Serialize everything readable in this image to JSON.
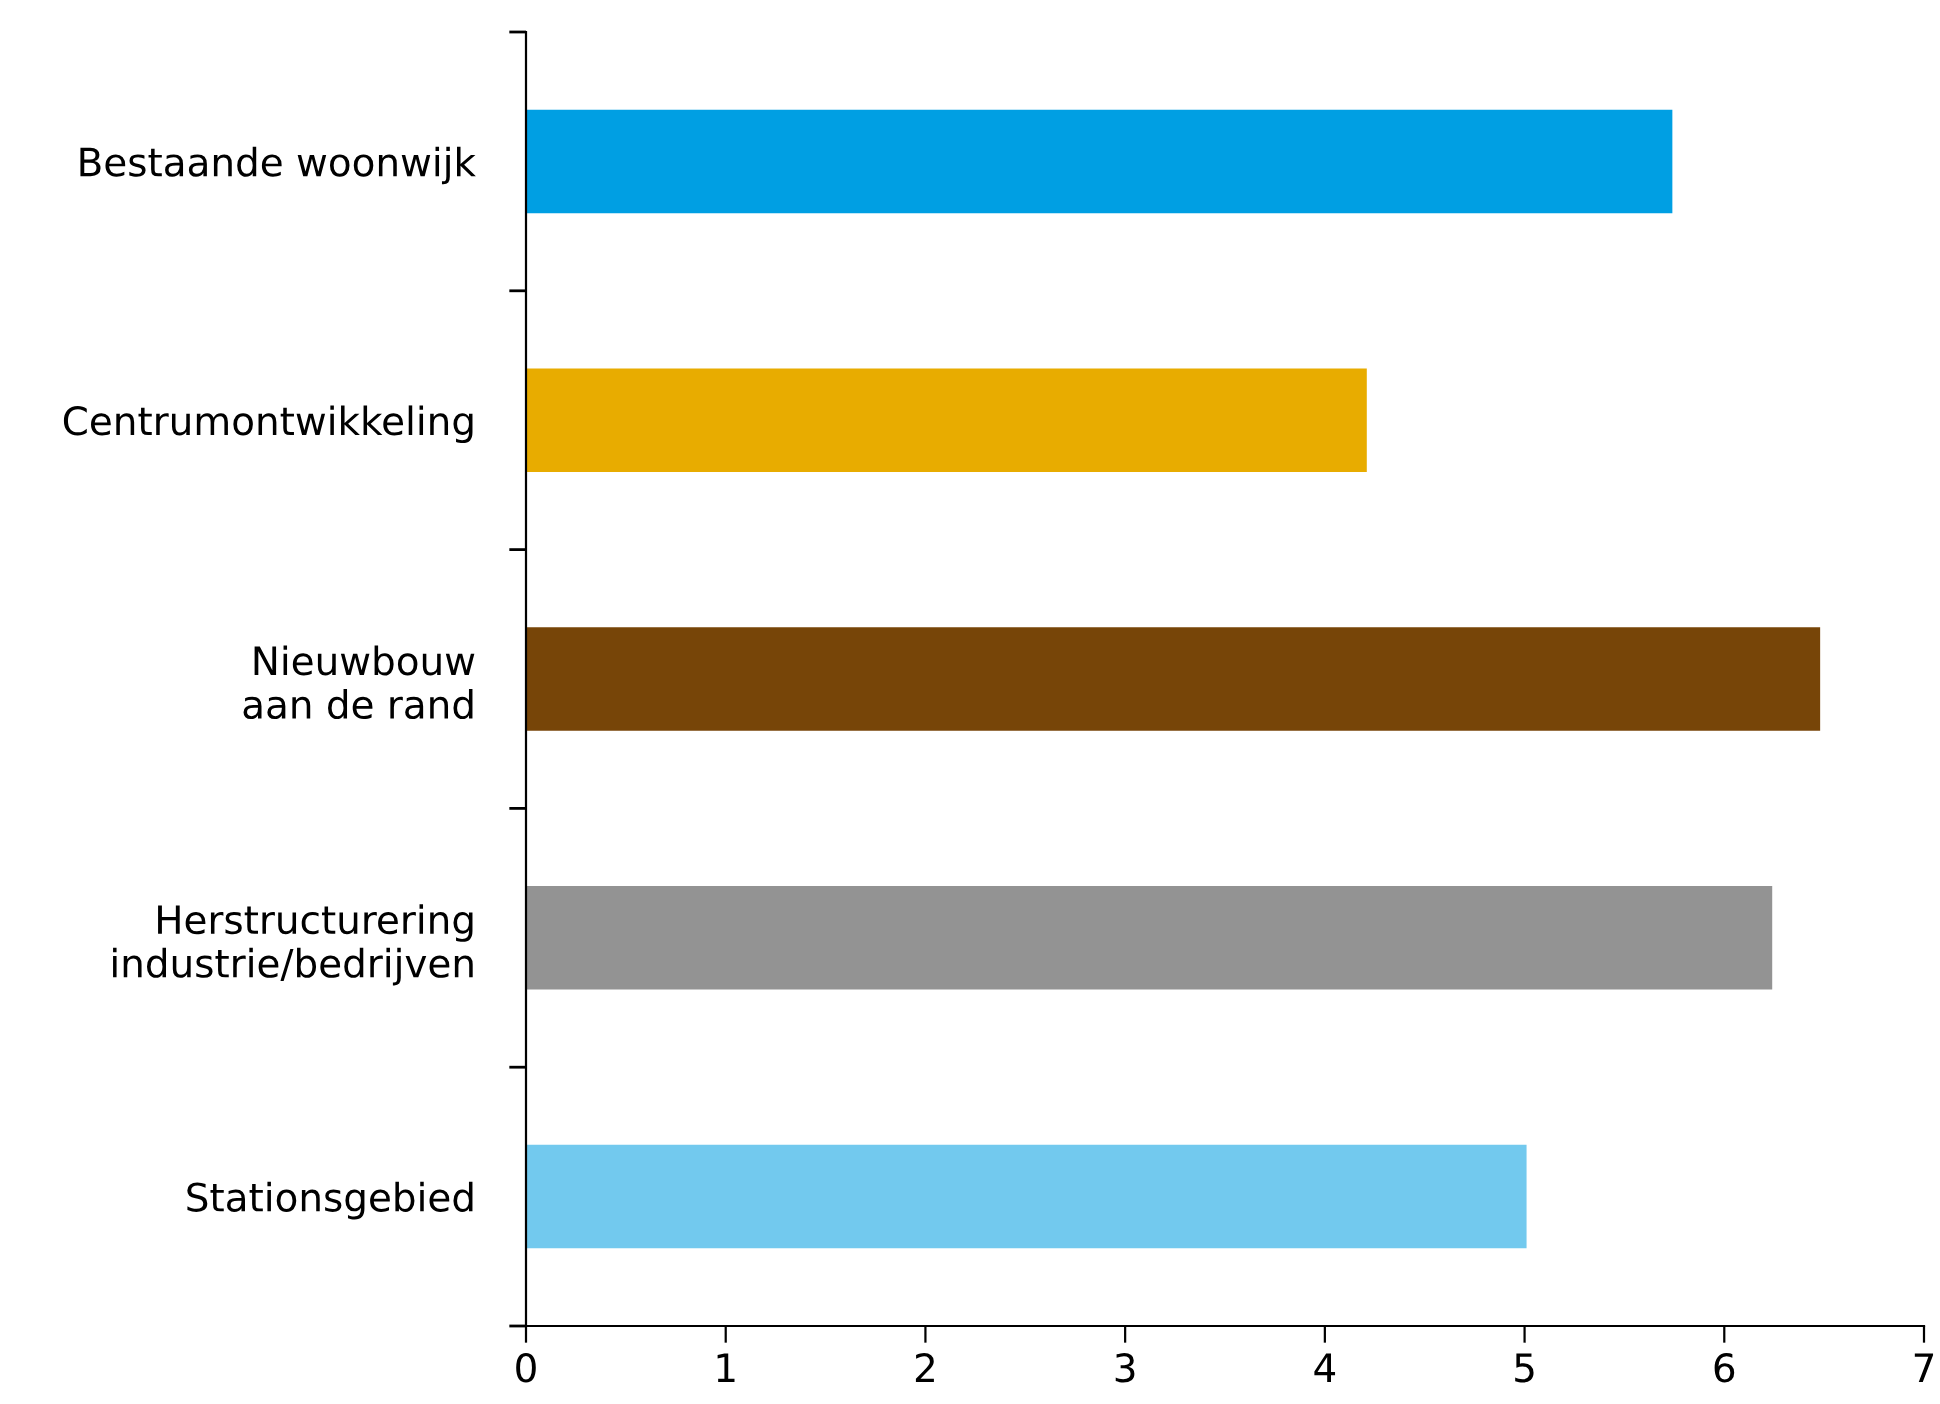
{
  "chart_data": {
    "type": "bar",
    "orientation": "horizontal",
    "categories": [
      "Bestaande woonwijk",
      "Centrumontwikkeling",
      "Nieuwbouw\naan de rand",
      "Herstructurering\nindustrie/bedrijven",
      "Stationsgebied"
    ],
    "values": [
      5.74,
      4.21,
      6.48,
      6.24,
      5.01
    ],
    "colors": [
      "#009fe3",
      "#e8ac00",
      "#774508",
      "#939393",
      "#72c9ee"
    ],
    "xlim": [
      0,
      7
    ],
    "xticks": [
      0,
      1,
      2,
      3,
      4,
      5,
      6,
      7
    ],
    "grid": false,
    "legend": false
  }
}
